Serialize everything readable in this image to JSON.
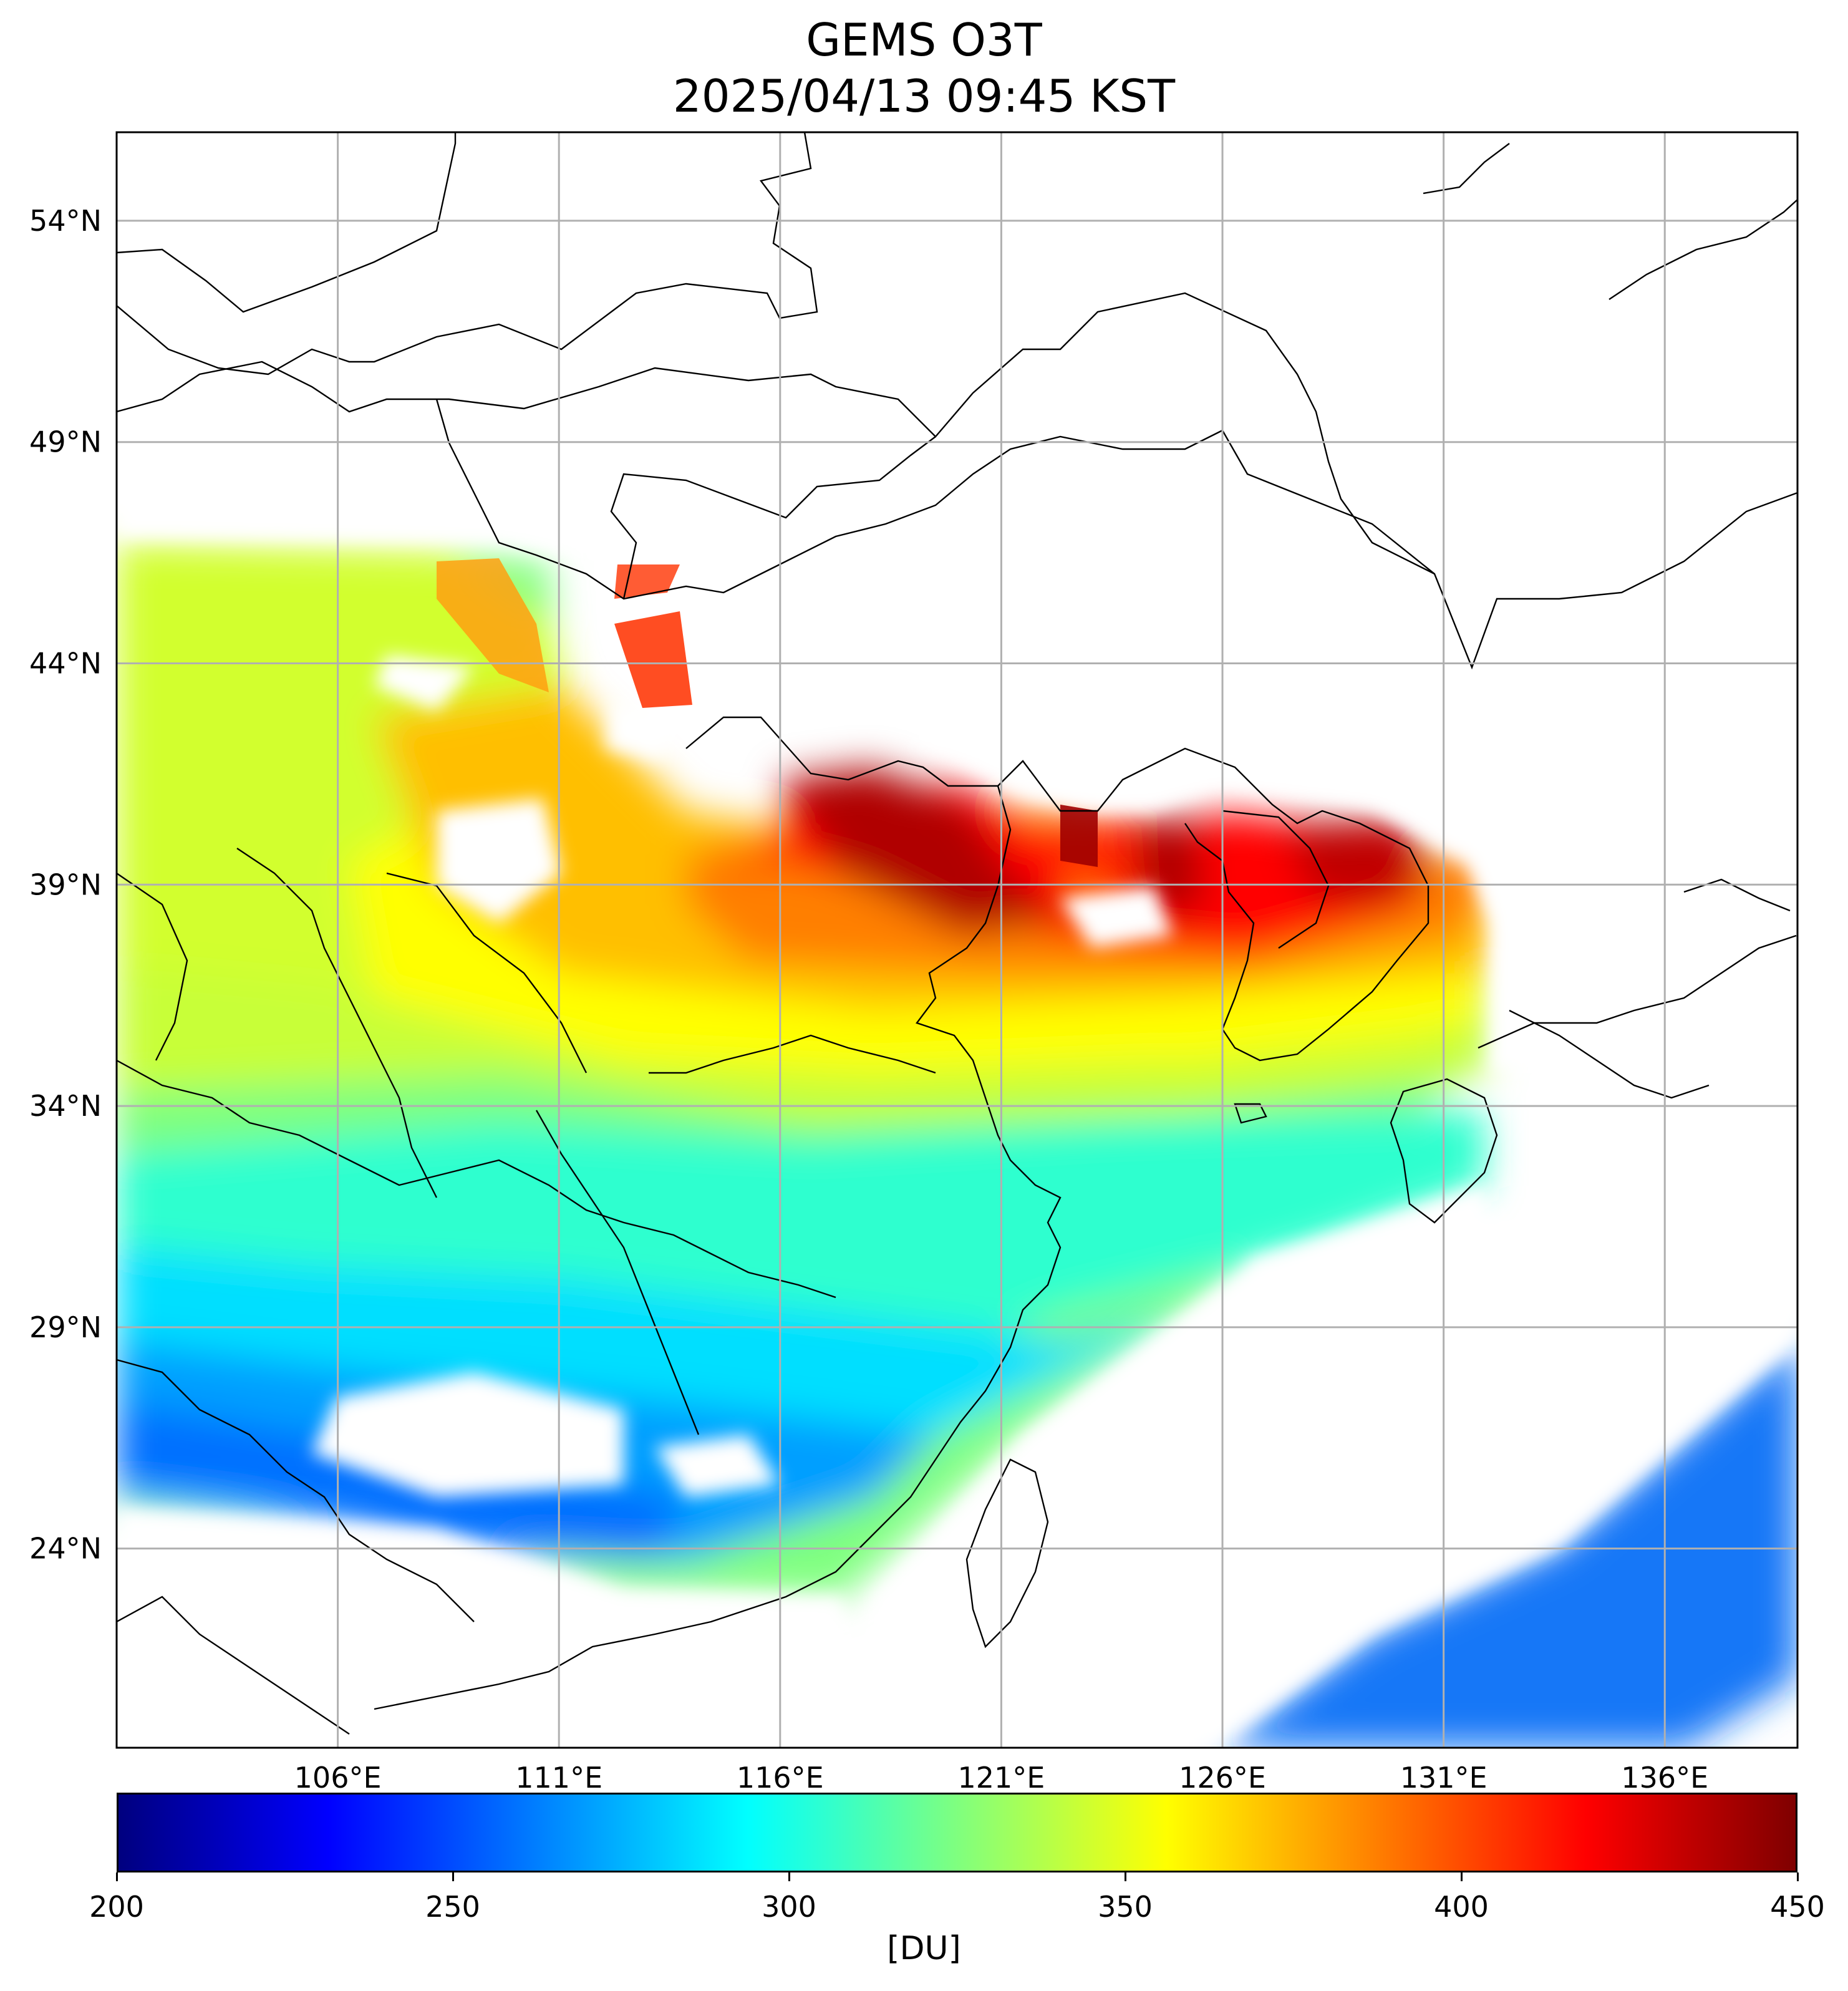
{
  "title": {
    "line1": "GEMS O3T",
    "line2": "2025/04/13 09:45 KST"
  },
  "map": {
    "lon_range": [
      101,
      139
    ],
    "lat_range": [
      19.5,
      56
    ],
    "lat_ticks": [
      {
        "value": 54,
        "label": "54°N"
      },
      {
        "value": 49,
        "label": "49°N"
      },
      {
        "value": 44,
        "label": "44°N"
      },
      {
        "value": 39,
        "label": "39°N"
      },
      {
        "value": 34,
        "label": "34°N"
      },
      {
        "value": 29,
        "label": "29°N"
      },
      {
        "value": 24,
        "label": "24°N"
      }
    ],
    "lon_ticks": [
      {
        "value": 106,
        "label": "106°E"
      },
      {
        "value": 111,
        "label": "111°E"
      },
      {
        "value": 116,
        "label": "116°E"
      },
      {
        "value": 121,
        "label": "121°E"
      },
      {
        "value": 126,
        "label": "126°E"
      },
      {
        "value": 131,
        "label": "131°E"
      },
      {
        "value": 136,
        "label": "136°E"
      }
    ],
    "grid": true
  },
  "colorbar": {
    "colormap": "jet",
    "min": 200,
    "max": 450,
    "ticks": [
      {
        "value": 200,
        "label": "200"
      },
      {
        "value": 250,
        "label": "250"
      },
      {
        "value": 300,
        "label": "300"
      },
      {
        "value": 350,
        "label": "350"
      },
      {
        "value": 400,
        "label": "400"
      },
      {
        "value": 450,
        "label": "450"
      }
    ],
    "unit": "[DU]"
  },
  "colors": {
    "jet_stops": [
      "#00007f",
      "#0000ff",
      "#007fff",
      "#00ffff",
      "#7fff7f",
      "#ffff00",
      "#ff7f00",
      "#ff0000",
      "#7f0000"
    ],
    "grid": "#b0b0b0"
  }
}
